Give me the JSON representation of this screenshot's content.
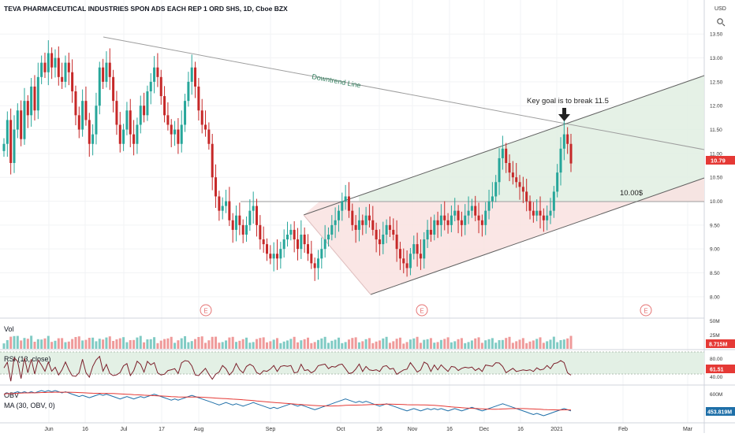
{
  "header": {
    "title": "TEVA PHARMACEUTICAL INDUSTRIES SPON ADS EACH REP 1 ORD SHS, 1D, Cboe BZX",
    "currency": "USD"
  },
  "colors": {
    "up": "#26a69a",
    "down": "#c62828",
    "up_vol": "#80cbc4",
    "down_vol": "#ef9a9a",
    "trendline": "#9e9e9e",
    "channel": "#616161",
    "channel_fill_upper": "#e0efe2",
    "channel_fill_lower": "#f9e2e1",
    "price_badge": "#e53935",
    "rsi_band": "#e3f0e5",
    "rsi_line": "#7b1f2a",
    "obv_line": "#1e6fa8",
    "ma_line": "#e53935",
    "event_marker": "#e57373"
  },
  "price_axis": {
    "ticks": [
      "13.50",
      "13.00",
      "12.50",
      "12.00",
      "11.50",
      "11.00",
      "10.50",
      "10.00",
      "9.50",
      "9.00",
      "8.50",
      "8.00"
    ],
    "last_price": "10.79"
  },
  "time_axis": {
    "ticks": [
      "Jun",
      "16",
      "Jul",
      "17",
      "Aug",
      "Sep",
      "Oct",
      "16",
      "Nov",
      "16",
      "Dec",
      "16",
      "2021",
      "Feb",
      "Mar"
    ]
  },
  "annotations": {
    "downtrend": "Downtrend Line",
    "goal": "Key goal is to break 11.5",
    "level": "10.00$",
    "events": [
      "E",
      "E",
      "E"
    ]
  },
  "panels": {
    "volume": {
      "label": "Vol",
      "ticks": [
        "50M",
        "25M"
      ],
      "last": "8.715M"
    },
    "rsi": {
      "label": "RSI (13, close)",
      "ticks": [
        "80.00",
        "40.00"
      ],
      "last": "61.51"
    },
    "obv": {
      "label": "OBV",
      "ma_label": "MA (30, OBV, 0)",
      "ticks": [
        "600M"
      ],
      "last": "453.819M"
    }
  },
  "chart_data": {
    "type": "candlestick",
    "title": "TEVA PHARMACEUTICAL INDUSTRIES SPON ADS EACH REP 1 ORD SHS, 1D, Cboe BZX",
    "ylim": [
      7.75,
      13.85
    ],
    "y_unit": "USD",
    "close": [
      11.2,
      11.7,
      10.8,
      11.5,
      11.9,
      11.3,
      12.1,
      11.8,
      12.4,
      11.9,
      12.6,
      12.9,
      12.7,
      13.1,
      12.8,
      13.0,
      12.6,
      12.5,
      12.9,
      12.7,
      12.3,
      11.8,
      11.5,
      12.1,
      11.7,
      11.2,
      11.4,
      12.0,
      12.8,
      12.5,
      12.9,
      12.6,
      12.1,
      11.6,
      11.2,
      11.5,
      11.9,
      11.4,
      11.2,
      11.6,
      12.0,
      11.8,
      12.3,
      12.5,
      12.8,
      12.6,
      12.2,
      11.8,
      11.6,
      11.4,
      11.5,
      11.2,
      11.6,
      12.1,
      12.5,
      12.8,
      12.4,
      11.9,
      11.6,
      11.5,
      11.2,
      10.5,
      10.1,
      9.8,
      9.9,
      10.0,
      9.6,
      9.4,
      9.7,
      9.5,
      9.3,
      9.5,
      9.8,
      9.9,
      9.5,
      9.2,
      9.1,
      8.9,
      8.8,
      8.9,
      8.8,
      9.0,
      9.2,
      9.3,
      9.4,
      9.2,
      9.0,
      9.3,
      9.1,
      8.9,
      8.7,
      8.6,
      8.8,
      9.0,
      9.2,
      9.3,
      9.5,
      9.6,
      9.8,
      10.0,
      10.1,
      9.8,
      9.5,
      9.4,
      9.6,
      9.5,
      9.7,
      9.6,
      9.4,
      9.2,
      9.1,
      9.3,
      9.5,
      9.4,
      9.3,
      9.0,
      8.8,
      8.7,
      8.6,
      8.9,
      9.1,
      8.9,
      8.8,
      9.2,
      9.4,
      9.3,
      9.6,
      9.5,
      9.7,
      9.6,
      9.5,
      9.7,
      9.8,
      9.6,
      9.5,
      9.7,
      9.8,
      9.9,
      9.7,
      9.6,
      9.5,
      9.8,
      10.0,
      10.1,
      10.4,
      10.9,
      11.1,
      10.8,
      10.6,
      10.5,
      10.4,
      10.3,
      10.2,
      10.0,
      9.8,
      9.7,
      9.8,
      9.7,
      9.6,
      9.7,
      9.8,
      10.2,
      10.6,
      11.1,
      11.4,
      11.2,
      10.79
    ]
  }
}
